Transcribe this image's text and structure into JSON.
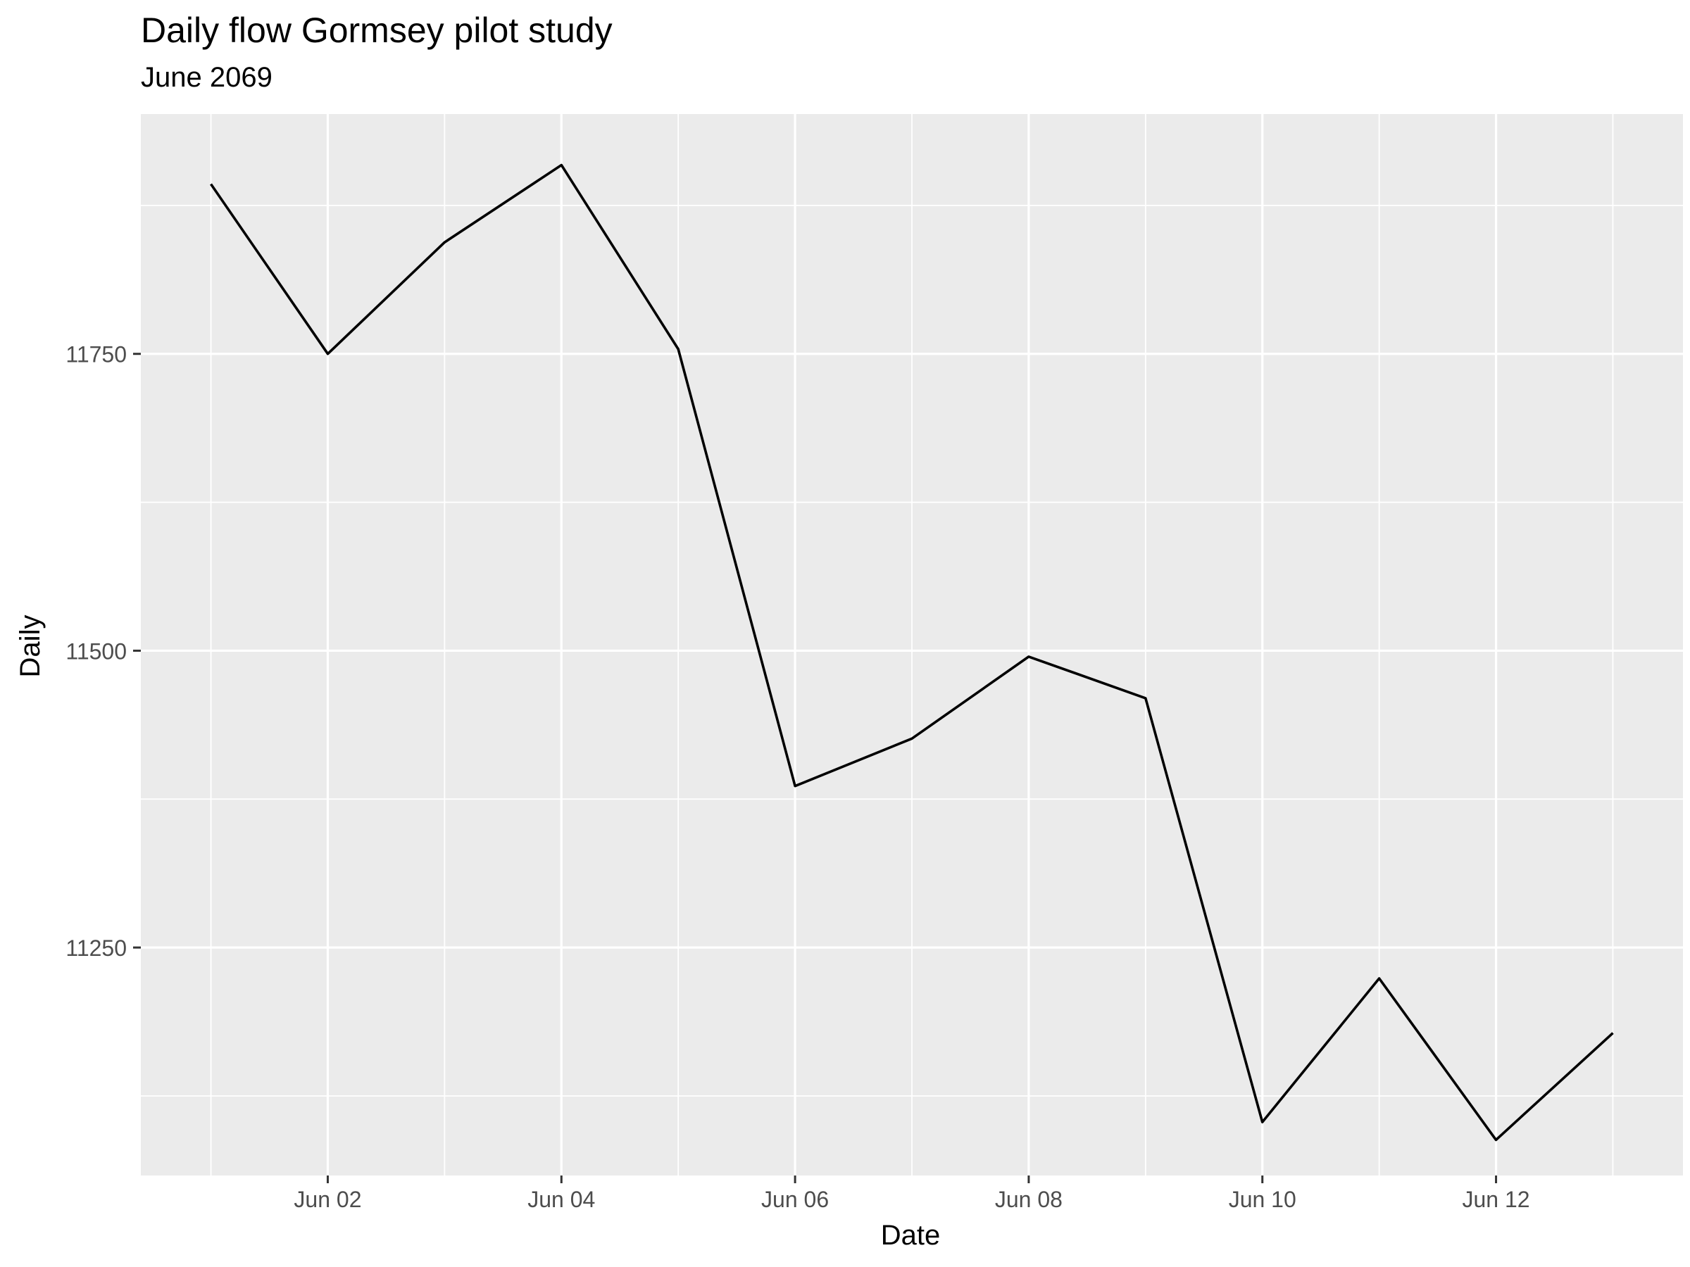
{
  "chart_data": {
    "type": "line",
    "title": "Daily flow Gormsey pilot study",
    "subtitle": "June 2069",
    "xlabel": "Date",
    "ylabel": "Daily",
    "x": [
      "2069-06-01",
      "2069-06-02",
      "2069-06-03",
      "2069-06-04",
      "2069-06-05",
      "2069-06-06",
      "2069-06-07",
      "2069-06-08",
      "2069-06-09",
      "2069-06-10",
      "2069-06-11",
      "2069-06-12",
      "2069-06-13"
    ],
    "series": [
      {
        "values": [
          11893,
          11750,
          11844,
          11909,
          11754,
          11386,
          11426,
          11495,
          11460,
          11103,
          11224,
          11088,
          11178
        ]
      }
    ],
    "xticks": [
      {
        "date": "2069-06-02",
        "label": "Jun 02"
      },
      {
        "date": "2069-06-04",
        "label": "Jun 04"
      },
      {
        "date": "2069-06-06",
        "label": "Jun 06"
      },
      {
        "date": "2069-06-08",
        "label": "Jun 08"
      },
      {
        "date": "2069-06-10",
        "label": "Jun 10"
      },
      {
        "date": "2069-06-12",
        "label": "Jun 12"
      }
    ],
    "yticks": [
      11250,
      11500,
      11750
    ],
    "xlim": [
      "2069-06-01",
      "2069-06-13"
    ],
    "ylim": [
      11058,
      11952
    ],
    "grid": true,
    "legend": "none",
    "colors": {
      "panel": "#EBEBEB",
      "grid": "#FFFFFF",
      "line": "#000000",
      "tick_text": "#4D4D4D",
      "tick_mark": "#333333"
    }
  }
}
